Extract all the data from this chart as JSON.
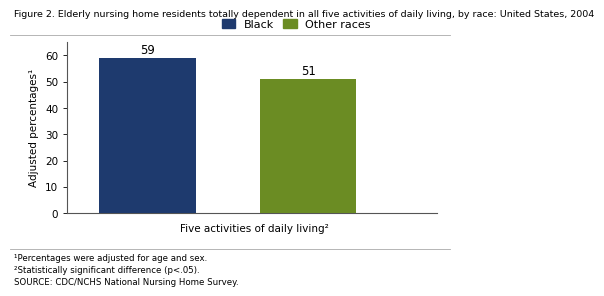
{
  "title": "Figure 2. Elderly nursing home residents totally dependent in all five activities of daily living, by race: United States, 2004",
  "categories": [
    "Black",
    "Other races"
  ],
  "values": [
    59,
    51
  ],
  "bar_colors": [
    "#1e3a6e",
    "#6b8c23"
  ],
  "bar_positions": [
    1,
    2
  ],
  "bar_width": 0.6,
  "ylabel": "Adjusted percentages¹",
  "xlabel": "Five activities of daily living²",
  "ylim": [
    0,
    65
  ],
  "yticks": [
    0,
    10,
    20,
    30,
    40,
    50,
    60
  ],
  "legend_labels": [
    "Black",
    "Other races"
  ],
  "legend_colors": [
    "#1e3a6e",
    "#6b8c23"
  ],
  "bar_labels": [
    "59",
    "51"
  ],
  "footnote1": "¹Percentages were adjusted for age and sex.",
  "footnote2": "²Statistically significant difference (p<.05).",
  "footnote3": "SOURCE: CDC/NCHS National Nursing Home Survey.",
  "title_fontsize": 6.8,
  "axis_label_fontsize": 7.5,
  "tick_fontsize": 7.5,
  "bar_label_fontsize": 8.5,
  "legend_fontsize": 8,
  "footnote_fontsize": 6.2,
  "background_color": "#ffffff"
}
